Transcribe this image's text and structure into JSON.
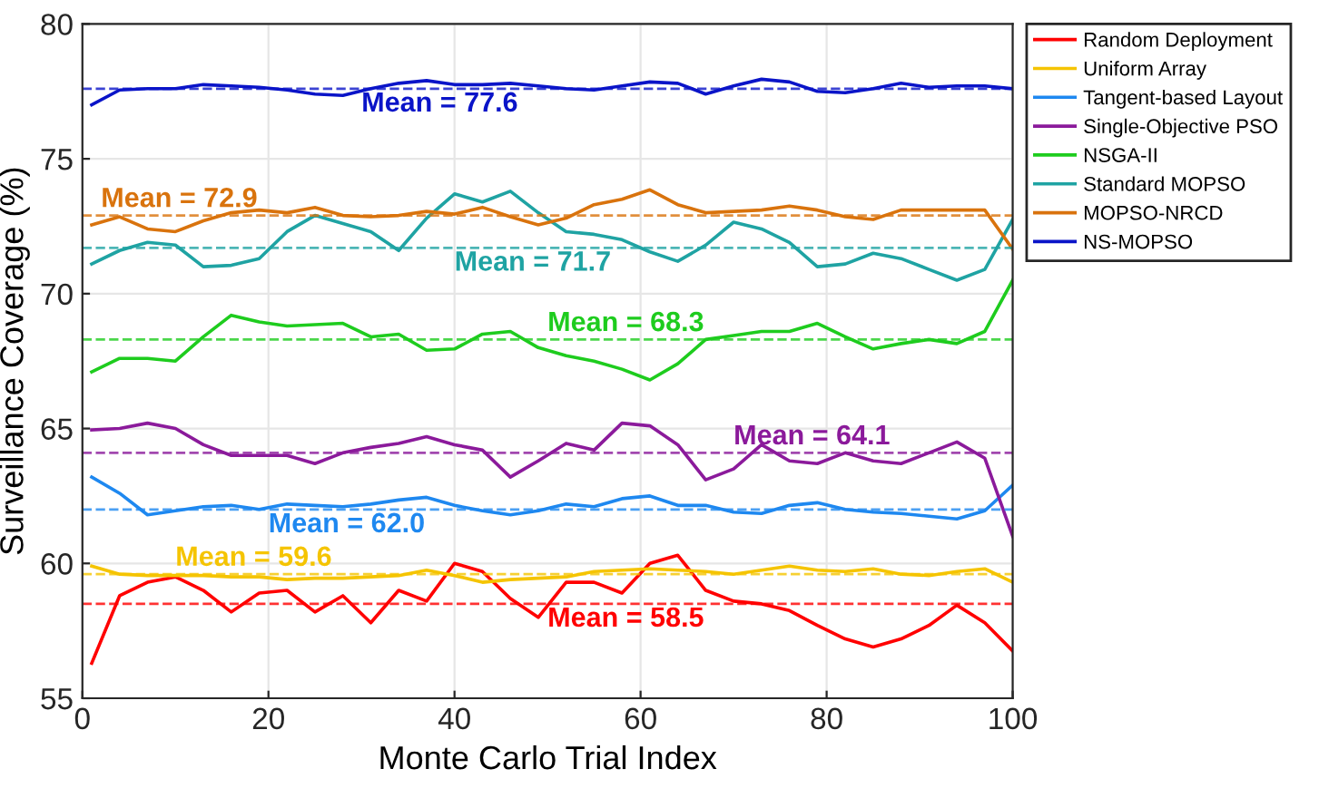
{
  "chart_data": {
    "type": "line",
    "xlabel": "Monte Carlo Trial Index",
    "ylabel": "Surveillance Coverage (%)",
    "xlim": [
      0,
      100
    ],
    "xticks": [
      0,
      20,
      40,
      60,
      80,
      100
    ],
    "ylim": [
      55,
      80
    ],
    "yticks": [
      55,
      60,
      65,
      70,
      75,
      80
    ],
    "grid": true,
    "legend": "top right",
    "marker": "none",
    "line_style": "solid",
    "x": [
      1,
      4,
      7,
      10,
      13,
      16,
      19,
      22,
      25,
      28,
      31,
      34,
      37,
      40,
      43,
      46,
      49,
      52,
      55,
      58,
      61,
      64,
      67,
      70,
      73,
      76,
      79,
      82,
      85,
      88,
      91,
      94,
      97,
      100
    ],
    "series": [
      {
        "name": "Random Deployment",
        "color": "#ff0000",
        "values": [
          56.3,
          58.8,
          59.3,
          59.5,
          59.0,
          58.2,
          58.9,
          59.0,
          58.2,
          58.8,
          57.8,
          59.0,
          58.6,
          60.0,
          59.7,
          58.7,
          58.0,
          59.3,
          59.3,
          58.9,
          60.0,
          60.3,
          59.0,
          58.6,
          58.5,
          58.25,
          57.7,
          57.2,
          56.9,
          57.2,
          57.7,
          58.45,
          57.8,
          56.75
        ]
      },
      {
        "name": "Uniform Array",
        "color": "#f5c400",
        "values": [
          59.9,
          59.6,
          59.55,
          59.55,
          59.55,
          59.5,
          59.5,
          59.4,
          59.45,
          59.45,
          59.5,
          59.55,
          59.75,
          59.55,
          59.3,
          59.4,
          59.45,
          59.5,
          59.7,
          59.75,
          59.8,
          59.75,
          59.7,
          59.6,
          59.75,
          59.9,
          59.75,
          59.7,
          59.8,
          59.6,
          59.55,
          59.7,
          59.8,
          59.3
        ]
      },
      {
        "name": "Tangent-based Layout",
        "color": "#1e88f0",
        "values": [
          63.2,
          62.6,
          61.8,
          61.95,
          62.1,
          62.15,
          62.0,
          62.2,
          62.15,
          62.1,
          62.2,
          62.35,
          62.45,
          62.15,
          61.95,
          61.8,
          61.95,
          62.2,
          62.1,
          62.4,
          62.5,
          62.15,
          62.15,
          61.9,
          61.85,
          62.15,
          62.25,
          62.0,
          61.9,
          61.85,
          61.75,
          61.65,
          61.95,
          62.9
        ]
      },
      {
        "name": "Single-Objective PSO",
        "color": "#8b1a9b",
        "values": [
          64.95,
          65.0,
          65.2,
          65.0,
          64.4,
          64.0,
          64.0,
          64.0,
          63.7,
          64.1,
          64.3,
          64.45,
          64.7,
          64.4,
          64.2,
          63.2,
          63.8,
          64.45,
          64.2,
          65.2,
          65.1,
          64.4,
          63.1,
          63.5,
          64.4,
          63.8,
          63.7,
          64.1,
          63.8,
          63.7,
          64.1,
          64.5,
          63.9,
          61.0
        ]
      },
      {
        "name": "NSGA-II",
        "color": "#1ecc1e",
        "values": [
          67.1,
          67.6,
          67.6,
          67.5,
          68.4,
          69.2,
          68.95,
          68.8,
          68.85,
          68.9,
          68.4,
          68.5,
          67.9,
          67.95,
          68.5,
          68.6,
          68.0,
          67.7,
          67.5,
          67.2,
          66.8,
          67.4,
          68.3,
          68.45,
          68.6,
          68.6,
          68.9,
          68.4,
          67.95,
          68.15,
          68.3,
          68.15,
          68.6,
          70.5
        ]
      },
      {
        "name": "Standard MOPSO",
        "color": "#1fa3a3",
        "values": [
          71.1,
          71.6,
          71.9,
          71.8,
          71.0,
          71.05,
          71.3,
          72.3,
          72.9,
          72.6,
          72.3,
          71.6,
          72.8,
          73.7,
          73.4,
          73.8,
          73.0,
          72.3,
          72.2,
          72.0,
          71.55,
          71.2,
          71.8,
          72.65,
          72.4,
          71.9,
          71.0,
          71.1,
          71.5,
          71.3,
          70.9,
          70.5,
          70.9,
          72.75
        ]
      },
      {
        "name": "MOPSO-NRCD",
        "color": "#d9730d",
        "values": [
          72.55,
          72.85,
          72.4,
          72.3,
          72.7,
          73.0,
          73.1,
          73.0,
          73.2,
          72.9,
          72.85,
          72.9,
          73.05,
          72.95,
          73.2,
          72.85,
          72.55,
          72.8,
          73.3,
          73.5,
          73.85,
          73.3,
          73.0,
          73.05,
          73.1,
          73.25,
          73.1,
          72.85,
          72.75,
          73.1,
          73.1,
          73.1,
          73.1,
          71.65
        ]
      },
      {
        "name": "NS-MOPSO",
        "color": "#0a14c8",
        "values": [
          77.0,
          77.55,
          77.6,
          77.6,
          77.75,
          77.7,
          77.65,
          77.55,
          77.4,
          77.35,
          77.6,
          77.8,
          77.9,
          77.75,
          77.75,
          77.8,
          77.7,
          77.6,
          77.55,
          77.7,
          77.85,
          77.8,
          77.4,
          77.7,
          77.95,
          77.85,
          77.5,
          77.45,
          77.6,
          77.8,
          77.65,
          77.7,
          77.7,
          77.6
        ]
      }
    ],
    "ref_lines": [
      {
        "axis": "y",
        "value": 58.5,
        "label": "Mean = 58.5",
        "color": "#ff0000",
        "line_style": "dashed"
      },
      {
        "axis": "y",
        "value": 59.6,
        "label": "Mean = 59.6",
        "color": "#f5c400",
        "line_style": "dashed"
      },
      {
        "axis": "y",
        "value": 62.0,
        "label": "Mean = 62.0",
        "color": "#1e88f0",
        "line_style": "dashed"
      },
      {
        "axis": "y",
        "value": 64.1,
        "label": "Mean = 64.1",
        "color": "#8b1a9b",
        "line_style": "dashed"
      },
      {
        "axis": "y",
        "value": 68.3,
        "label": "Mean = 68.3",
        "color": "#1ecc1e",
        "line_style": "dashed"
      },
      {
        "axis": "y",
        "value": 71.7,
        "label": "Mean = 71.7",
        "color": "#1fa3a3",
        "line_style": "dashed"
      },
      {
        "axis": "y",
        "value": 72.9,
        "label": "Mean = 72.9",
        "color": "#d9730d",
        "line_style": "dashed"
      },
      {
        "axis": "y",
        "value": 77.6,
        "label": "Mean = 77.6",
        "color": "#0a14c8",
        "line_style": "dashed"
      }
    ]
  }
}
